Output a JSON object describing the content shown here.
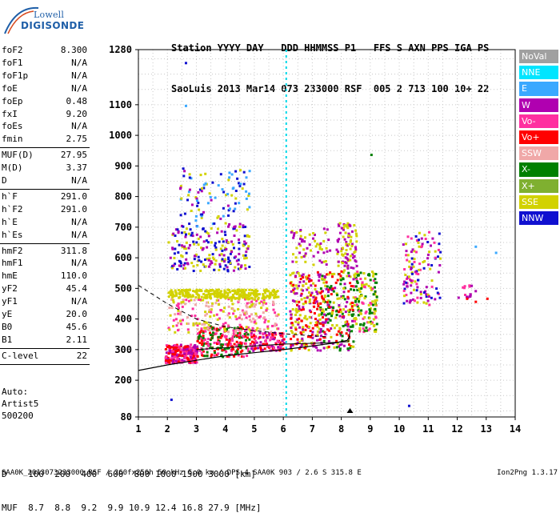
{
  "logo": {
    "top": "Lowell",
    "bottom": "DIGISONDE"
  },
  "header": {
    "line1": "Station YYYY DAY   DDD HHMMSS P1   FFS S AXN PPS IGA PS",
    "line2": "SaoLuis 2013 Mar14 073 233000 RSF  005 2 713 100 10+ 22"
  },
  "params": [
    {
      "name": "foF2",
      "value": "8.300"
    },
    {
      "name": "foF1",
      "value": "N/A"
    },
    {
      "name": "foF1p",
      "value": "N/A"
    },
    {
      "name": "foE",
      "value": "N/A"
    },
    {
      "name": "foEp",
      "value": "0.48"
    },
    {
      "name": "fxI",
      "value": "9.20"
    },
    {
      "name": "foEs",
      "value": "N/A"
    },
    {
      "name": "fmin",
      "value": "2.75"
    },
    {
      "sep": true
    },
    {
      "name": "MUF(D)",
      "value": "27.95"
    },
    {
      "name": "M(D)",
      "value": "3.37"
    },
    {
      "name": "D",
      "value": "N/A"
    },
    {
      "sep": true
    },
    {
      "name": "h`F",
      "value": "291.0"
    },
    {
      "name": "h`F2",
      "value": "291.0"
    },
    {
      "name": "h`E",
      "value": "N/A"
    },
    {
      "name": "h`Es",
      "value": "N/A"
    },
    {
      "sep": true
    },
    {
      "name": "hmF2",
      "value": "311.8"
    },
    {
      "name": "hmF1",
      "value": "N/A"
    },
    {
      "name": "hmE",
      "value": "110.0"
    },
    {
      "name": "yF2",
      "value": "45.4"
    },
    {
      "name": "yF1",
      "value": "N/A"
    },
    {
      "name": "yE",
      "value": "20.0"
    },
    {
      "name": "B0",
      "value": "45.6"
    },
    {
      "name": "B1",
      "value": "2.11"
    },
    {
      "sep": true
    },
    {
      "name": "C-level",
      "value": "22"
    },
    {
      "sep": true
    }
  ],
  "auto": [
    "Auto:",
    "Artist5",
    "500200"
  ],
  "legend": [
    {
      "label": "NoVal",
      "color": "#a0a0a0"
    },
    {
      "label": "NNE",
      "color": "#00e5ff"
    },
    {
      "label": "E",
      "color": "#3aa8ff"
    },
    {
      "label": "W",
      "color": "#b000b0"
    },
    {
      "label": "Vo-",
      "color": "#ff2fa0"
    },
    {
      "label": "Vo+",
      "color": "#ff0000"
    },
    {
      "label": "SSW",
      "color": "#f0a8a8"
    },
    {
      "label": "X-",
      "color": "#008000"
    },
    {
      "label": "X+",
      "color": "#7fb030"
    },
    {
      "label": "SSE",
      "color": "#d2d200"
    },
    {
      "label": "NNW",
      "color": "#1010d0"
    }
  ],
  "chart_data": {
    "type": "scatter",
    "xlim": [
      1,
      14
    ],
    "ylim": [
      80,
      1280
    ],
    "xticks": [
      1,
      2,
      3,
      4,
      5,
      6,
      7,
      8,
      9,
      10,
      11,
      12,
      13,
      14
    ],
    "yticks": [
      80,
      200,
      300,
      400,
      500,
      600,
      700,
      800,
      900,
      1000,
      1100,
      1280
    ],
    "grid": true,
    "foF2_marker_x": 8.3,
    "fmin_marker_x": 2.75,
    "vertical_dashed_line_x": 6.1,
    "trace_curve": [
      {
        "x": 1.0,
        "y": 232
      },
      {
        "x": 2.0,
        "y": 250
      },
      {
        "x": 3.0,
        "y": 265
      },
      {
        "x": 4.0,
        "y": 280
      },
      {
        "x": 5.0,
        "y": 290
      },
      {
        "x": 6.0,
        "y": 300
      },
      {
        "x": 7.0,
        "y": 312
      },
      {
        "x": 7.8,
        "y": 322
      },
      {
        "x": 8.2,
        "y": 330
      },
      {
        "x": 8.3,
        "y": 345
      }
    ],
    "profile_curve": [
      {
        "x": 1.0,
        "y": 510
      },
      {
        "x": 2.0,
        "y": 450
      },
      {
        "x": 3.0,
        "y": 400
      },
      {
        "x": 4.0,
        "y": 375
      },
      {
        "x": 5.0,
        "y": 362
      },
      {
        "x": 6.0,
        "y": 352
      },
      {
        "x": 7.0,
        "y": 345
      },
      {
        "x": 7.5,
        "y": 342
      }
    ],
    "clusters": [
      {
        "x": [
          1.9,
          3.0
        ],
        "y": [
          260,
          320
        ],
        "colors": [
          "#ff0000",
          "#ff2fa0",
          "#b000b0"
        ],
        "n": 260
      },
      {
        "x": [
          3.0,
          4.8
        ],
        "y": [
          280,
          380
        ],
        "colors": [
          "#ff0000",
          "#ff2fa0",
          "#008000"
        ],
        "n": 240
      },
      {
        "x": [
          4.8,
          6.0
        ],
        "y": [
          300,
          360
        ],
        "colors": [
          "#ff0000",
          "#ff2fa0",
          "#b000b0"
        ],
        "n": 120
      },
      {
        "x": [
          2.0,
          5.8
        ],
        "y": [
          360,
          470
        ],
        "colors": [
          "#d2d200",
          "#ff2fa0",
          "#f0a8a8"
        ],
        "n": 220
      },
      {
        "x": [
          2.0,
          5.8
        ],
        "y": [
          470,
          500
        ],
        "colors": [
          "#d2d200"
        ],
        "n": 260
      },
      {
        "x": [
          2.0,
          4.8
        ],
        "y": [
          560,
          700
        ],
        "colors": [
          "#1010d0",
          "#b000b0",
          "#d2d200"
        ],
        "n": 200
      },
      {
        "x": [
          2.4,
          4.8
        ],
        "y": [
          700,
          900
        ],
        "colors": [
          "#1010d0",
          "#b000b0",
          "#d2d200",
          "#3aa8ff"
        ],
        "n": 110
      },
      {
        "x": [
          6.2,
          7.2
        ],
        "y": [
          300,
          560
        ],
        "colors": [
          "#ff0000",
          "#d2d200",
          "#b000b0"
        ],
        "n": 200
      },
      {
        "x": [
          7.2,
          8.4
        ],
        "y": [
          300,
          560
        ],
        "colors": [
          "#ff0000",
          "#d2d200",
          "#b000b0",
          "#008000"
        ],
        "n": 240
      },
      {
        "x": [
          7.8,
          8.5
        ],
        "y": [
          560,
          720
        ],
        "colors": [
          "#b000b0",
          "#d2d200"
        ],
        "n": 90
      },
      {
        "x": [
          8.4,
          9.2
        ],
        "y": [
          360,
          560
        ],
        "colors": [
          "#d2d200",
          "#ff2fa0",
          "#008000"
        ],
        "n": 150
      },
      {
        "x": [
          6.2,
          7.6
        ],
        "y": [
          580,
          700
        ],
        "colors": [
          "#d2d200",
          "#b000b0"
        ],
        "n": 60
      },
      {
        "x": [
          10.1,
          11.4
        ],
        "y": [
          450,
          690
        ],
        "colors": [
          "#d2d200",
          "#b000b0",
          "#ff2fa0",
          "#1010d0"
        ],
        "n": 130
      },
      {
        "x": [
          12.0,
          12.6
        ],
        "y": [
          470,
          520
        ],
        "colors": [
          "#b000b0",
          "#ff2fa0"
        ],
        "n": 15
      }
    ]
  },
  "bottom": {
    "d_row": "D    100  200  400  600  800 1000 1500 3000 [km]",
    "muf_row": "MUF  8.7  8.8  9.2  9.9 10.9 12.4 16.8 27.9 [MHz]",
    "footer": "SAA0K_2013073233000.RSF / 260fx256h 50 kHz 5.0 km / DPS-4 SAA0K 903 / 2.6 S 315.8 E",
    "version": "Ion2Png 1.3.17"
  }
}
